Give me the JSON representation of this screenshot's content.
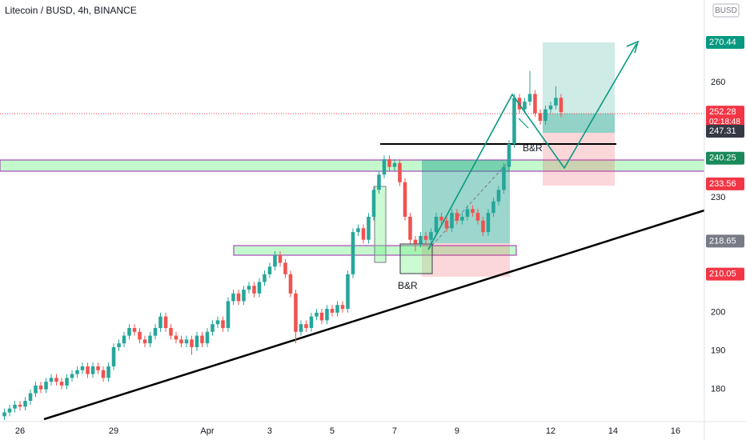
{
  "chart_data": {
    "type": "candlestick",
    "title": "Litecoin / BUSD, 4h, BINANCE",
    "currency": "BUSD",
    "annotations": [
      "B&R",
      "B&R"
    ],
    "up_color": "#26a69a",
    "down_color": "#ef5350",
    "xlim": [
      -15.4,
      526.2
    ],
    "xticks": [
      {
        "value": 0,
        "label": "26"
      },
      {
        "value": 72,
        "label": "29"
      },
      {
        "value": 144,
        "label": "Apr"
      },
      {
        "value": 192,
        "label": "3"
      },
      {
        "value": 240,
        "label": "5"
      },
      {
        "value": 288,
        "label": "7"
      },
      {
        "value": 336,
        "label": "9"
      },
      {
        "value": 408,
        "label": "12"
      },
      {
        "value": 456,
        "label": "14"
      },
      {
        "value": 504,
        "label": "16"
      }
    ],
    "ylim": [
      171.6,
      281.5
    ],
    "yticks": [
      180,
      190,
      200,
      230,
      260
    ],
    "grid": false,
    "price_labels": [
      {
        "value": 270.44,
        "color": "#089981"
      },
      {
        "value": 252.28,
        "color": "#f23645",
        "countdown": "02:18:48"
      },
      {
        "value": 247.31,
        "color": "#363a45"
      },
      {
        "value": 240.25,
        "color": "#1b8a5a"
      },
      {
        "value": 233.56,
        "color": "#f23645"
      },
      {
        "value": 218.65,
        "color": "#787b86"
      },
      {
        "value": 210.05,
        "color": "#f23645"
      }
    ],
    "x": [
      -12,
      -8,
      -4,
      0,
      4,
      8,
      12,
      16,
      20,
      24,
      28,
      32,
      36,
      40,
      44,
      48,
      52,
      56,
      60,
      64,
      68,
      72,
      76,
      80,
      84,
      88,
      92,
      96,
      100,
      104,
      108,
      112,
      116,
      120,
      124,
      128,
      132,
      136,
      140,
      144,
      148,
      152,
      156,
      160,
      164,
      168,
      172,
      176,
      180,
      184,
      188,
      192,
      196,
      200,
      204,
      208,
      212,
      216,
      220,
      224,
      228,
      232,
      236,
      240,
      244,
      248,
      252,
      256,
      260,
      264,
      268,
      272,
      276,
      280,
      284,
      288,
      292,
      296,
      300,
      304,
      308,
      312,
      316,
      320,
      324,
      328,
      332,
      336,
      340,
      344,
      348,
      352,
      356,
      360,
      364,
      368,
      372,
      376,
      380,
      384,
      388,
      392,
      396,
      400,
      404,
      408,
      412,
      416
    ],
    "open": [
      173,
      174,
      175,
      176,
      175.5,
      177,
      179,
      181,
      180,
      182,
      183,
      182,
      181,
      183,
      184,
      185,
      186,
      184,
      186,
      185,
      183,
      186,
      191,
      192,
      194,
      196,
      195,
      193,
      192,
      194,
      196,
      199,
      196,
      194,
      193,
      192,
      193,
      191,
      194,
      192,
      195,
      197,
      198,
      196,
      203,
      205,
      203,
      206,
      207,
      205,
      208,
      210,
      212,
      215,
      213,
      210,
      205,
      195,
      197,
      196,
      199,
      200,
      198,
      201,
      200,
      202,
      201,
      210,
      221,
      222,
      219,
      225,
      232,
      236,
      240,
      238,
      239,
      234,
      225,
      219,
      218,
      220,
      219,
      221,
      225,
      224,
      222,
      226,
      224,
      225,
      227,
      226,
      224,
      221,
      226,
      229,
      232,
      238,
      244,
      256,
      253,
      255,
      257,
      252,
      250,
      253,
      254,
      256
    ],
    "high": [
      175,
      176,
      177,
      177,
      178,
      180,
      182,
      182,
      183,
      184,
      184,
      183,
      184,
      185,
      186,
      187,
      187,
      187,
      187,
      186,
      187,
      192,
      193,
      195,
      197,
      197,
      196,
      194,
      195,
      197,
      200,
      200,
      197,
      195,
      194,
      194,
      194,
      195,
      195,
      196,
      198,
      199,
      199,
      204,
      206,
      206,
      207,
      208,
      208,
      209,
      211,
      213,
      216,
      216,
      214,
      211,
      206,
      198,
      198,
      200,
      201,
      201,
      202,
      202,
      203,
      203,
      211,
      222,
      223,
      223,
      226,
      233,
      237,
      241,
      241,
      240,
      240,
      235,
      226,
      220,
      221,
      221,
      222,
      226,
      226,
      225,
      227,
      227,
      226,
      228,
      228,
      227,
      225,
      227,
      230,
      233,
      239,
      245,
      257,
      257,
      256,
      263,
      258,
      253,
      254,
      255,
      259,
      257
    ],
    "low": [
      172,
      173,
      174,
      174.5,
      174.5,
      176,
      178,
      179,
      179,
      181,
      181,
      180,
      180,
      182,
      183,
      184,
      183,
      183,
      184,
      182,
      182,
      185,
      190,
      191,
      193,
      194,
      192,
      191,
      191,
      193,
      195,
      195,
      193,
      192,
      191,
      191,
      189,
      190,
      191,
      191,
      194,
      196,
      195,
      195,
      202,
      202,
      202,
      205,
      204,
      204,
      207,
      209,
      211,
      212,
      209,
      204,
      192,
      194,
      195,
      195,
      198,
      197,
      197,
      199,
      199,
      200,
      200,
      209,
      220,
      218,
      218,
      224,
      231,
      235,
      237,
      237,
      233,
      224,
      218,
      216,
      217,
      218,
      218,
      220,
      223,
      221,
      221,
      223,
      223,
      224,
      225,
      223,
      220,
      220,
      225,
      228,
      231,
      237,
      243,
      252,
      252,
      254,
      251,
      249,
      249,
      252,
      253,
      251
    ],
    "close": [
      174,
      175,
      176,
      175.5,
      177,
      179,
      181,
      180,
      182,
      183,
      182,
      181,
      183,
      184,
      185,
      186,
      184,
      186,
      185,
      183,
      186,
      191,
      192,
      194,
      196,
      195,
      193,
      192,
      194,
      196,
      199,
      196,
      194,
      193,
      192,
      193,
      191,
      194,
      192,
      195,
      197,
      198,
      196,
      203,
      205,
      203,
      206,
      207,
      205,
      208,
      210,
      212,
      215,
      213,
      210,
      205,
      195,
      197,
      196,
      199,
      200,
      198,
      201,
      200,
      202,
      201,
      210,
      221,
      222,
      219,
      225,
      232,
      236,
      240,
      238,
      239,
      234,
      225,
      219,
      218,
      220,
      219,
      221,
      225,
      224,
      222,
      226,
      224,
      225,
      227,
      226,
      224,
      221,
      226,
      229,
      232,
      238,
      244,
      256,
      253,
      255,
      257,
      252,
      250,
      253,
      254,
      256,
      252.28
    ]
  }
}
